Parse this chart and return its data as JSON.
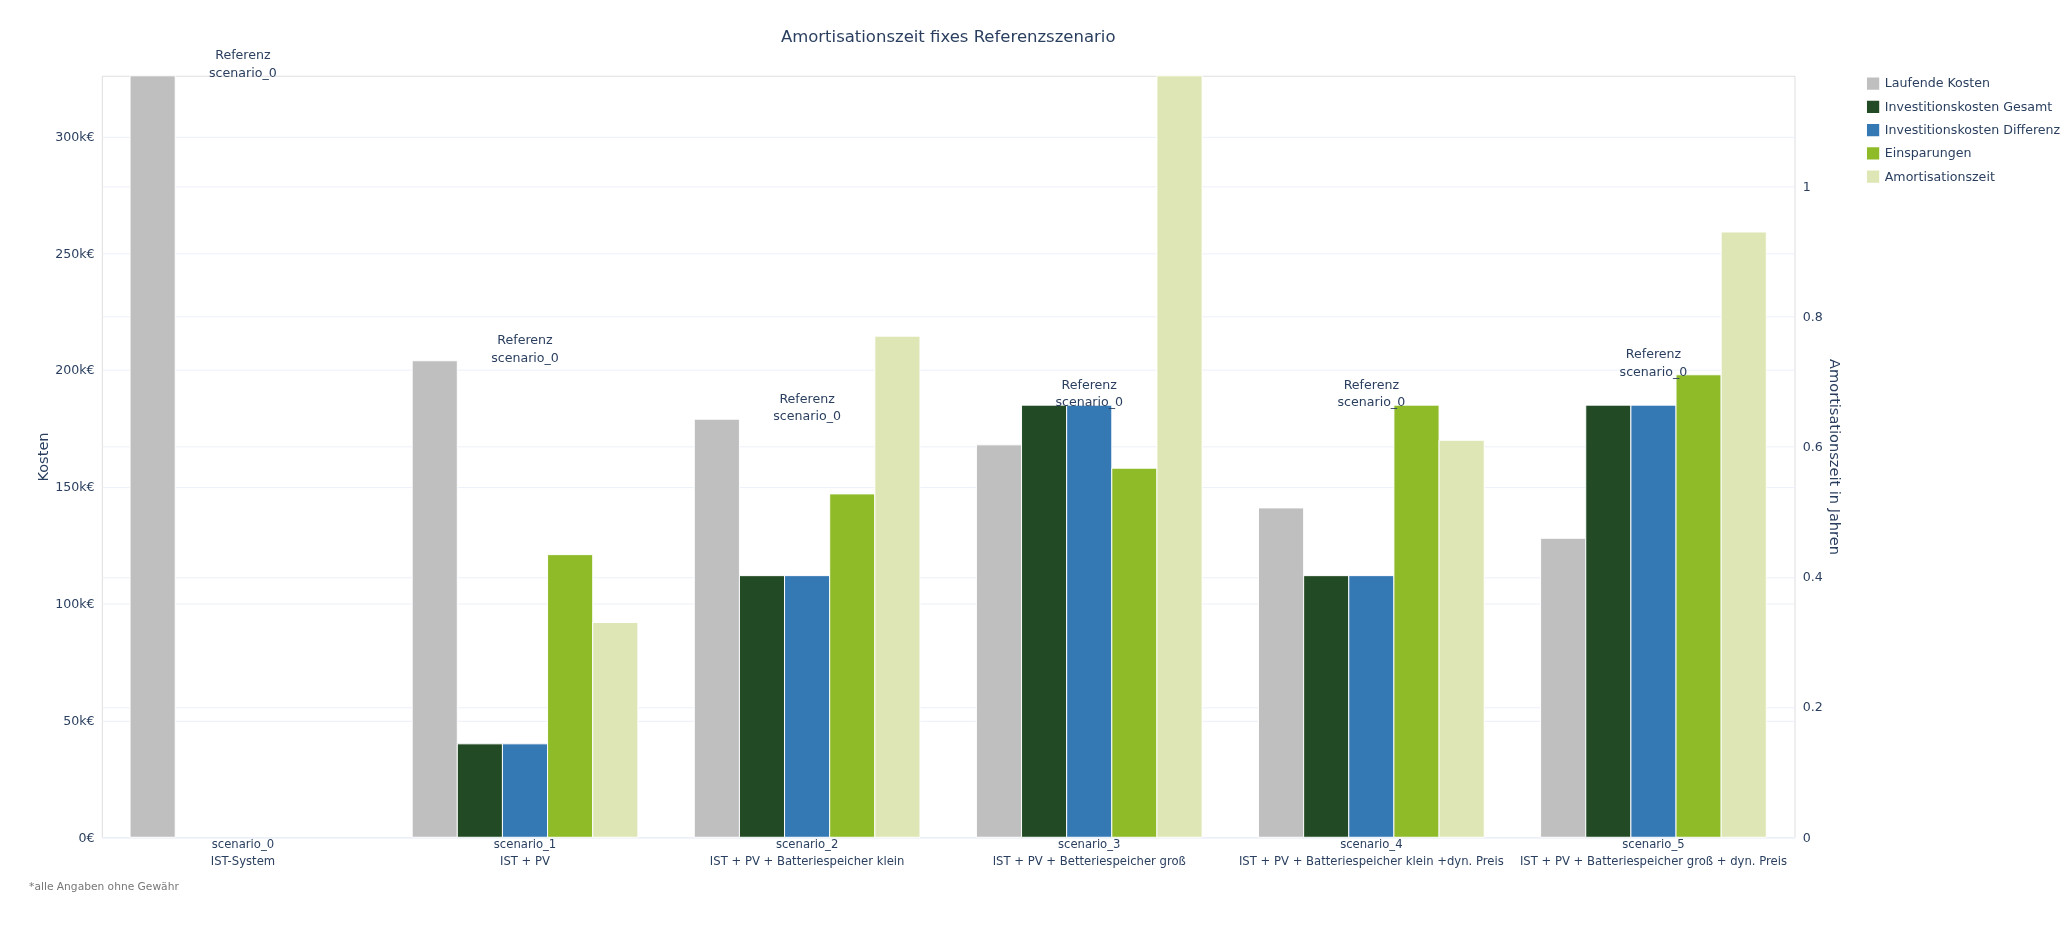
{
  "chart_data": {
    "type": "bar",
    "title": "Amortisationszeit fixes Referenzszenario",
    "categories": [
      "scenario_0\nIST-System",
      "scenario_1\nIST + PV",
      "scenario_2\nIST + PV + Batteriespeicher klein",
      "scenario_3\nIST + PV + Betteriespeicher groß",
      "scenario_4\nIST + PV + Batteriespeicher klein +dyn. Preis",
      "scenario_5\nIST + PV + Batteriespeicher groß + dyn. Preis"
    ],
    "series": [
      {
        "name": "Laufende Kosten",
        "color": "#bfbfbf",
        "values": [
          326000,
          204000,
          179000,
          168000,
          141000,
          128000
        ]
      },
      {
        "name": "Investitionskosten Gesamt",
        "color": "#224b25",
        "values": [
          null,
          40000,
          112000,
          185000,
          112000,
          185000
        ]
      },
      {
        "name": "Investitionskosten Differenz",
        "color": "#3478b4",
        "values": [
          null,
          40000,
          112000,
          185000,
          112000,
          185000
        ]
      },
      {
        "name": "Einsparungen",
        "color": "#8fbb29",
        "values": [
          null,
          121000,
          147000,
          158000,
          185000,
          198000
        ]
      },
      {
        "name": "Amortisationszeit",
        "color": "#dfe6b5",
        "axis": "y2",
        "values": [
          null,
          0.33,
          0.77,
          1.17,
          0.61,
          0.93
        ]
      }
    ],
    "ylabel": "Kosten",
    "y2label": "Amortisationszeit in Jahren",
    "ylim": [
      0,
      326000
    ],
    "yticks": [
      {
        "value": 0,
        "label": "0€"
      },
      {
        "value": 50000,
        "label": "50k€"
      },
      {
        "value": 100000,
        "label": "100k€"
      },
      {
        "value": 150000,
        "label": "150k€"
      },
      {
        "value": 200000,
        "label": "200k€"
      },
      {
        "value": 250000,
        "label": "250k€"
      },
      {
        "value": 300000,
        "label": "300k€"
      }
    ],
    "y2lim": [
      0,
      1.17
    ],
    "y2ticks": [
      0,
      0.2,
      0.4,
      0.6,
      0.8,
      1
    ],
    "grid": true,
    "legend": "top right",
    "annotations": [
      "Referenz\nscenario_0",
      "Referenz\nscenario_0",
      "Referenz\nscenario_0",
      "Referenz\nscenario_0",
      "Referenz\nscenario_0",
      "Referenz\nscenario_0",
      "*alle Angaben ohne Gewähr"
    ]
  }
}
